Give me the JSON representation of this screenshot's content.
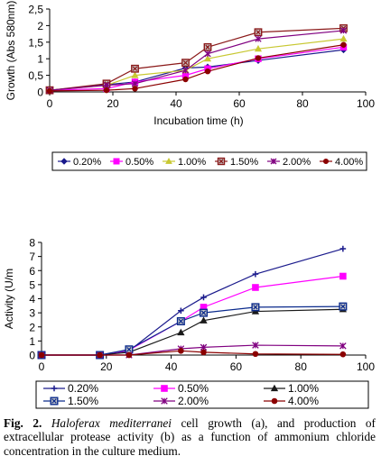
{
  "chart_data": [
    {
      "type": "line",
      "x": [
        0,
        18,
        27,
        43,
        50,
        66,
        93
      ],
      "xlabel": "Incubation time (h)",
      "ylabel": "Growth (Abs 580nm)",
      "xlim": [
        0,
        100
      ],
      "ylim": [
        0,
        2.5
      ],
      "xticks": [
        "0",
        "20",
        "40",
        "60",
        "80",
        "100"
      ],
      "yticks": [
        "0",
        "0,5",
        "1",
        "1,5",
        "2",
        "2,5"
      ],
      "grid": false,
      "legend": "below",
      "series": [
        {
          "name": "0.20%",
          "color": "#1a1a8c",
          "marker": "diamond",
          "values": [
            0.05,
            0.22,
            0.3,
            0.72,
            0.75,
            0.95,
            1.27
          ]
        },
        {
          "name": "0.50%",
          "color": "#ff00ff",
          "marker": "square",
          "values": [
            0.05,
            0.1,
            0.3,
            0.5,
            0.7,
            1.0,
            1.35
          ]
        },
        {
          "name": "1.00%",
          "color": "#c8c832",
          "marker": "triangle",
          "values": [
            0.05,
            0.2,
            0.5,
            0.65,
            1.0,
            1.3,
            1.6
          ]
        },
        {
          "name": "1.50%",
          "color": "#8b1a1a",
          "marker": "boxx",
          "values": [
            0.05,
            0.25,
            0.7,
            0.88,
            1.35,
            1.8,
            1.92
          ]
        },
        {
          "name": "2.00%",
          "color": "#800080",
          "marker": "star",
          "values": [
            0.05,
            0.2,
            0.25,
            0.65,
            1.15,
            1.6,
            1.85
          ]
        },
        {
          "name": "4.00%",
          "color": "#8b0000",
          "marker": "circle",
          "values": [
            0.03,
            0.05,
            0.1,
            0.38,
            0.62,
            1.02,
            1.42
          ]
        }
      ]
    },
    {
      "type": "line",
      "x": [
        0,
        18,
        27,
        43,
        50,
        66,
        93
      ],
      "xlabel": "",
      "ylabel": "Activity (U/m",
      "xlim": [
        0,
        100
      ],
      "ylim": [
        0,
        8
      ],
      "xticks": [
        "0",
        "20",
        "40",
        "60",
        "80",
        "100"
      ],
      "yticks": [
        "0",
        "1",
        "2",
        "3",
        "4",
        "5",
        "6",
        "7",
        "8"
      ],
      "grid": false,
      "legend": "below",
      "series": [
        {
          "name": "0.20%",
          "color": "#1a1a8c",
          "marker": "plus",
          "values": [
            0,
            0,
            0.3,
            3.15,
            4.1,
            5.75,
            7.55
          ]
        },
        {
          "name": "0.50%",
          "color": "#ff00ff",
          "marker": "square",
          "values": [
            0,
            0,
            0.35,
            2.4,
            3.4,
            4.8,
            5.6
          ]
        },
        {
          "name": "1.00%",
          "color": "#1a1a1a",
          "marker": "triangle",
          "values": [
            0,
            0,
            0.2,
            1.6,
            2.45,
            3.1,
            3.25
          ]
        },
        {
          "name": "1.50%",
          "color": "#0a2a8c",
          "marker": "boxx",
          "values": [
            0,
            0,
            0.4,
            2.4,
            3.0,
            3.4,
            3.45
          ]
        },
        {
          "name": "2.00%",
          "color": "#800080",
          "marker": "star",
          "values": [
            0,
            0,
            0,
            0.45,
            0.55,
            0.7,
            0.65
          ]
        },
        {
          "name": "4.00%",
          "color": "#8b0000",
          "marker": "circle",
          "values": [
            0,
            0,
            0,
            0.3,
            0.2,
            0.08,
            0.05
          ]
        }
      ]
    }
  ],
  "caption": {
    "label": "Fig. 2.",
    "species": "Haloferax mediterranei",
    "text": "cell growth (a), and production of extracellular protease activity (b) as a function of ammonium chloride concentration in the culture medium."
  }
}
